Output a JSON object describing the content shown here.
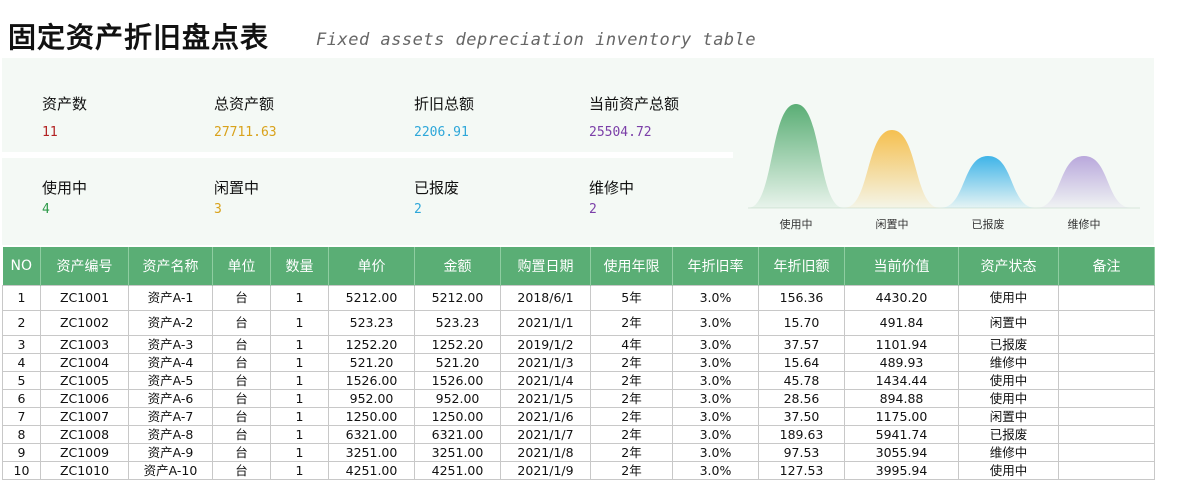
{
  "header": {
    "title": "固定资产折旧盘点表",
    "subtitle": "Fixed assets depreciation inventory table"
  },
  "summary": [
    {
      "label": "资产数",
      "value": "11",
      "color": "#b22222"
    },
    {
      "label": "总资产额",
      "value": "27711.63",
      "color": "#d9a21b"
    },
    {
      "label": "折旧总额",
      "value": "2206.91",
      "color": "#2ea7d9"
    },
    {
      "label": "当前资产总额",
      "value": "25504.72",
      "color": "#7b3fa8"
    }
  ],
  "status_counts": [
    {
      "label": "使用中",
      "value": "4",
      "color": "#2e9b4a"
    },
    {
      "label": "闲置中",
      "value": "3",
      "color": "#d9a21b"
    },
    {
      "label": "已报废",
      "value": "2",
      "color": "#2ea7d9"
    },
    {
      "label": "维修中",
      "value": "2",
      "color": "#7b3fa8"
    }
  ],
  "chart_data": {
    "type": "area",
    "categories": [
      "使用中",
      "闲置中",
      "已报废",
      "维修中"
    ],
    "values": [
      4,
      3,
      2,
      2
    ],
    "colors": [
      "#5aae75",
      "#f5c050",
      "#3fb4e8",
      "#b9a8dc"
    ],
    "grid": false
  },
  "table": {
    "columns": [
      "NO",
      "资产编号",
      "资产名称",
      "单位",
      "数量",
      "单价",
      "金额",
      "购置日期",
      "使用年限",
      "年折旧率",
      "年折旧额",
      "当前价值",
      "资产状态",
      "备注"
    ],
    "rows": [
      [
        "1",
        "ZC1001",
        "资产A-1",
        "台",
        "1",
        "5212.00",
        "5212.00",
        "2018/6/1",
        "5年",
        "3.0%",
        "156.36",
        "4430.20",
        "使用中",
        ""
      ],
      [
        "2",
        "ZC1002",
        "资产A-2",
        "台",
        "1",
        "523.23",
        "523.23",
        "2021/1/1",
        "2年",
        "3.0%",
        "15.70",
        "491.84",
        "闲置中",
        ""
      ],
      [
        "3",
        "ZC1003",
        "资产A-3",
        "台",
        "1",
        "1252.20",
        "1252.20",
        "2019/1/2",
        "4年",
        "3.0%",
        "37.57",
        "1101.94",
        "已报废",
        ""
      ],
      [
        "4",
        "ZC1004",
        "资产A-4",
        "台",
        "1",
        "521.20",
        "521.20",
        "2021/1/3",
        "2年",
        "3.0%",
        "15.64",
        "489.93",
        "维修中",
        ""
      ],
      [
        "5",
        "ZC1005",
        "资产A-5",
        "台",
        "1",
        "1526.00",
        "1526.00",
        "2021/1/4",
        "2年",
        "3.0%",
        "45.78",
        "1434.44",
        "使用中",
        ""
      ],
      [
        "6",
        "ZC1006",
        "资产A-6",
        "台",
        "1",
        "952.00",
        "952.00",
        "2021/1/5",
        "2年",
        "3.0%",
        "28.56",
        "894.88",
        "使用中",
        ""
      ],
      [
        "7",
        "ZC1007",
        "资产A-7",
        "台",
        "1",
        "1250.00",
        "1250.00",
        "2021/1/6",
        "2年",
        "3.0%",
        "37.50",
        "1175.00",
        "闲置中",
        ""
      ],
      [
        "8",
        "ZC1008",
        "资产A-8",
        "台",
        "1",
        "6321.00",
        "6321.00",
        "2021/1/7",
        "2年",
        "3.0%",
        "189.63",
        "5941.74",
        "已报废",
        ""
      ],
      [
        "9",
        "ZC1009",
        "资产A-9",
        "台",
        "1",
        "3251.00",
        "3251.00",
        "2021/1/8",
        "2年",
        "3.0%",
        "97.53",
        "3055.94",
        "维修中",
        ""
      ],
      [
        "10",
        "ZC1010",
        "资产A-10",
        "台",
        "1",
        "4251.00",
        "4251.00",
        "2021/1/9",
        "2年",
        "3.0%",
        "127.53",
        "3995.94",
        "使用中",
        ""
      ]
    ]
  }
}
